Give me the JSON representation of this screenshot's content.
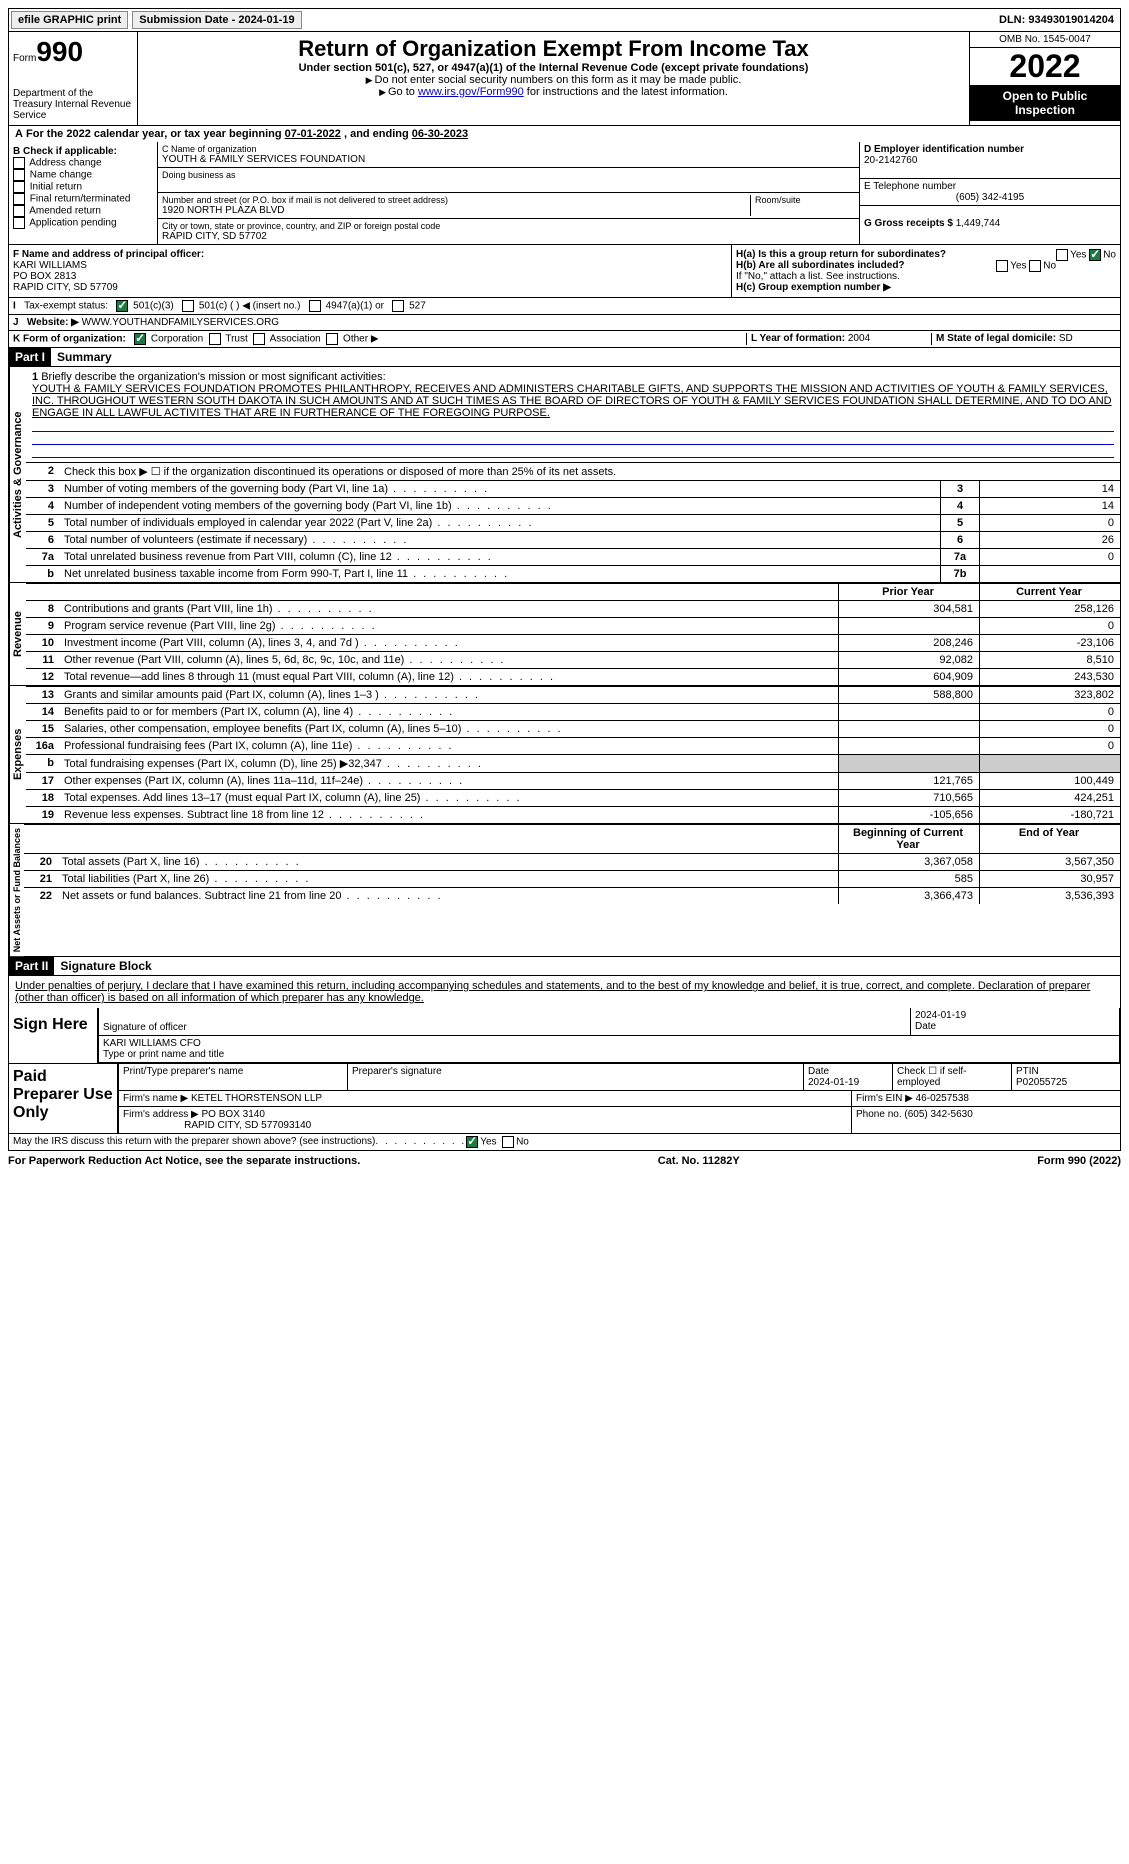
{
  "topbar": {
    "efile": "efile GRAPHIC print",
    "submission_label": "Submission Date - ",
    "submission_date": "2024-01-19",
    "dln_label": "DLN: ",
    "dln": "93493019014204"
  },
  "header": {
    "form_word": "Form",
    "form_num": "990",
    "dept": "Department of the Treasury Internal Revenue Service",
    "title": "Return of Organization Exempt From Income Tax",
    "sub1": "Under section 501(c), 527, or 4947(a)(1) of the Internal Revenue Code (except private foundations)",
    "sub2": "Do not enter social security numbers on this form as it may be made public.",
    "sub3_pre": "Go to ",
    "sub3_link": "www.irs.gov/Form990",
    "sub3_post": " for instructions and the latest information.",
    "omb": "OMB No. 1545-0047",
    "year": "2022",
    "open": "Open to Public Inspection"
  },
  "a": {
    "text": "For the 2022 calendar year, or tax year beginning ",
    "begin": "07-01-2022",
    "mid": " , and ending ",
    "end": "06-30-2023"
  },
  "b": {
    "label": "B Check if applicable:",
    "items": [
      "Address change",
      "Name change",
      "Initial return",
      "Final return/terminated",
      "Amended return",
      "Application pending"
    ]
  },
  "c": {
    "name_label": "C Name of organization",
    "name": "YOUTH & FAMILY SERVICES FOUNDATION",
    "dba_label": "Doing business as",
    "street_label": "Number and street (or P.O. box if mail is not delivered to street address)",
    "street": "1920 NORTH PLAZA BLVD",
    "room_label": "Room/suite",
    "city_label": "City or town, state or province, country, and ZIP or foreign postal code",
    "city": "RAPID CITY, SD  57702"
  },
  "d": {
    "label": "D Employer identification number",
    "val": "20-2142760"
  },
  "e": {
    "label": "E Telephone number",
    "val": "(605) 342-4195"
  },
  "g": {
    "label": "G Gross receipts $ ",
    "val": "1,449,744"
  },
  "f": {
    "label": "F  Name and address of principal officer:",
    "name": "KARI WILLIAMS",
    "po": "PO BOX 2813",
    "city": "RAPID CITY, SD  57709"
  },
  "h": {
    "a": "H(a)  Is this a group return for subordinates?",
    "b": "H(b)  Are all subordinates included?",
    "b_note": "If \"No,\" attach a list. See instructions.",
    "c": "H(c)  Group exemption number ▶",
    "yes": "Yes",
    "no": "No"
  },
  "i": {
    "label": "Tax-exempt status:",
    "opts": [
      "501(c)(3)",
      "501(c) (  ) ◀ (insert no.)",
      "4947(a)(1) or",
      "527"
    ]
  },
  "j": {
    "label": "Website: ▶",
    "val": "WWW.YOUTHANDFAMILYSERVICES.ORG"
  },
  "k": {
    "label": "K Form of organization:",
    "opts": [
      "Corporation",
      "Trust",
      "Association",
      "Other ▶"
    ]
  },
  "l": {
    "label": "L Year of formation: ",
    "val": "2004"
  },
  "m": {
    "label": "M State of legal domicile: ",
    "val": "SD"
  },
  "part1": {
    "num": "Part I",
    "title": "Summary"
  },
  "vert": {
    "ag": "Activities & Governance",
    "rev": "Revenue",
    "exp": "Expenses",
    "net": "Net Assets or Fund Balances"
  },
  "line1": {
    "label": "Briefly describe the organization's mission or most significant activities:",
    "text": "YOUTH & FAMILY SERVICES FOUNDATION PROMOTES PHILANTHROPY, RECEIVES AND ADMINISTERS CHARITABLE GIFTS, AND SUPPORTS THE MISSION AND ACTIVITIES OF YOUTH & FAMILY SERVICES, INC. THROUGHOUT WESTERN SOUTH DAKOTA IN SUCH AMOUNTS AND AT SUCH TIMES AS THE BOARD OF DIRECTORS OF YOUTH & FAMILY SERVICES FOUNDATION SHALL DETERMINE, AND TO DO AND ENGAGE IN ALL LAWFUL ACTIVITES THAT ARE IN FURTHERANCE OF THE FOREGOING PURPOSE."
  },
  "line2": "Check this box ▶ ☐  if the organization discontinued its operations or disposed of more than 25% of its net assets.",
  "lines_ag": [
    {
      "n": "3",
      "d": "Number of voting members of the governing body (Part VI, line 1a)",
      "r": "3",
      "v": "14"
    },
    {
      "n": "4",
      "d": "Number of independent voting members of the governing body (Part VI, line 1b)",
      "r": "4",
      "v": "14"
    },
    {
      "n": "5",
      "d": "Total number of individuals employed in calendar year 2022 (Part V, line 2a)",
      "r": "5",
      "v": "0"
    },
    {
      "n": "6",
      "d": "Total number of volunteers (estimate if necessary)",
      "r": "6",
      "v": "26"
    },
    {
      "n": "7a",
      "d": "Total unrelated business revenue from Part VIII, column (C), line 12",
      "r": "7a",
      "v": "0"
    },
    {
      "n": "b",
      "d": "Net unrelated business taxable income from Form 990-T, Part I, line 11",
      "r": "7b",
      "v": ""
    }
  ],
  "colhead": {
    "prior": "Prior Year",
    "current": "Current Year",
    "beg": "Beginning of Current Year",
    "end": "End of Year"
  },
  "lines_rev": [
    {
      "n": "8",
      "d": "Contributions and grants (Part VIII, line 1h)",
      "p": "304,581",
      "c": "258,126"
    },
    {
      "n": "9",
      "d": "Program service revenue (Part VIII, line 2g)",
      "p": "",
      "c": "0"
    },
    {
      "n": "10",
      "d": "Investment income (Part VIII, column (A), lines 3, 4, and 7d )",
      "p": "208,246",
      "c": "-23,106"
    },
    {
      "n": "11",
      "d": "Other revenue (Part VIII, column (A), lines 5, 6d, 8c, 9c, 10c, and 11e)",
      "p": "92,082",
      "c": "8,510"
    },
    {
      "n": "12",
      "d": "Total revenue—add lines 8 through 11 (must equal Part VIII, column (A), line 12)",
      "p": "604,909",
      "c": "243,530"
    }
  ],
  "lines_exp": [
    {
      "n": "13",
      "d": "Grants and similar amounts paid (Part IX, column (A), lines 1–3 )",
      "p": "588,800",
      "c": "323,802"
    },
    {
      "n": "14",
      "d": "Benefits paid to or for members (Part IX, column (A), line 4)",
      "p": "",
      "c": "0"
    },
    {
      "n": "15",
      "d": "Salaries, other compensation, employee benefits (Part IX, column (A), lines 5–10)",
      "p": "",
      "c": "0"
    },
    {
      "n": "16a",
      "d": "Professional fundraising fees (Part IX, column (A), line 11e)",
      "p": "",
      "c": "0"
    },
    {
      "n": "b",
      "d": "Total fundraising expenses (Part IX, column (D), line 25) ▶32,347",
      "p": "grey",
      "c": "grey"
    },
    {
      "n": "17",
      "d": "Other expenses (Part IX, column (A), lines 11a–11d, 11f–24e)",
      "p": "121,765",
      "c": "100,449"
    },
    {
      "n": "18",
      "d": "Total expenses. Add lines 13–17 (must equal Part IX, column (A), line 25)",
      "p": "710,565",
      "c": "424,251"
    },
    {
      "n": "19",
      "d": "Revenue less expenses. Subtract line 18 from line 12",
      "p": "-105,656",
      "c": "-180,721"
    }
  ],
  "lines_net": [
    {
      "n": "20",
      "d": "Total assets (Part X, line 16)",
      "p": "3,367,058",
      "c": "3,567,350"
    },
    {
      "n": "21",
      "d": "Total liabilities (Part X, line 26)",
      "p": "585",
      "c": "30,957"
    },
    {
      "n": "22",
      "d": "Net assets or fund balances. Subtract line 21 from line 20",
      "p": "3,366,473",
      "c": "3,536,393"
    }
  ],
  "part2": {
    "num": "Part II",
    "title": "Signature Block"
  },
  "sig": {
    "decl": "Under penalties of perjury, I declare that I have examined this return, including accompanying schedules and statements, and to the best of my knowledge and belief, it is true, correct, and complete. Declaration of preparer (other than officer) is based on all information of which preparer has any knowledge.",
    "sign_here": "Sign Here",
    "sig_officer": "Signature of officer",
    "date": "Date",
    "date_val": "2024-01-19",
    "name_title": "KARI WILLIAMS CFO",
    "type_name": "Type or print name and title",
    "paid": "Paid Preparer Use Only",
    "prep_name_label": "Print/Type preparer's name",
    "prep_sig_label": "Preparer's signature",
    "prep_date": "2024-01-19",
    "check_self": "Check ☐ if self-employed",
    "ptin_label": "PTIN",
    "ptin": "P02055725",
    "firm_name_label": "Firm's name    ▶ ",
    "firm_name": "KETEL THORSTENSON LLP",
    "firm_ein_label": "Firm's EIN ▶ ",
    "firm_ein": "46-0257538",
    "firm_addr_label": "Firm's address ▶ ",
    "firm_addr": "PO BOX 3140",
    "firm_city": "RAPID CITY, SD  577093140",
    "phone_label": "Phone no. ",
    "phone": "(605) 342-5630",
    "may_irs": "May the IRS discuss this return with the preparer shown above? (see instructions)"
  },
  "footer": {
    "left": "For Paperwork Reduction Act Notice, see the separate instructions.",
    "mid": "Cat. No. 11282Y",
    "right_form": "Form ",
    "right_num": "990",
    "right_year": " (2022)"
  }
}
